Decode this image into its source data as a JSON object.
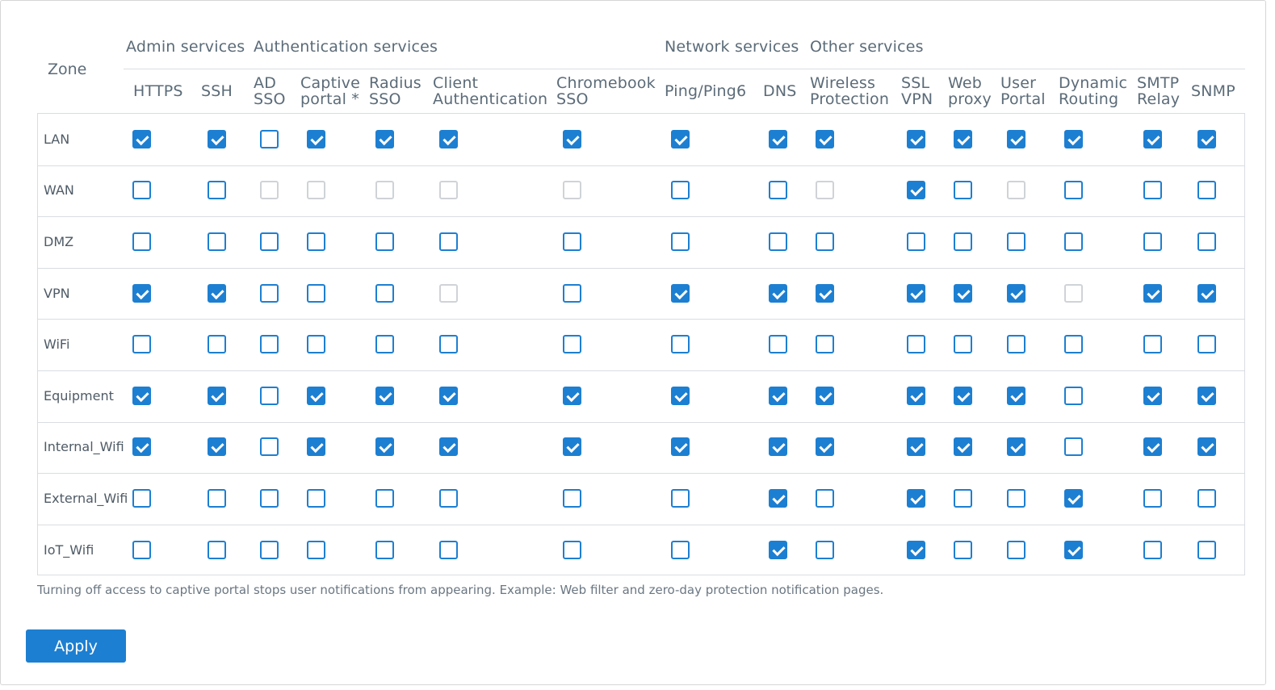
{
  "groups": [
    {
      "label": "Admin services"
    },
    {
      "label": "Authentication services"
    },
    {
      "label": "Network services"
    },
    {
      "label": "Other services"
    }
  ],
  "zone_header": "Zone",
  "columns": [
    {
      "l1": "HTTPS",
      "l2": ""
    },
    {
      "l1": "SSH",
      "l2": ""
    },
    {
      "l1": "AD",
      "l2": "SSO"
    },
    {
      "l1": "Captive",
      "l2": "portal *"
    },
    {
      "l1": "Radius",
      "l2": "SSO"
    },
    {
      "l1": "Client",
      "l2": "Authentication"
    },
    {
      "l1": "Chromebook",
      "l2": "SSO"
    },
    {
      "l1": "Ping/Ping6",
      "l2": ""
    },
    {
      "l1": "DNS",
      "l2": ""
    },
    {
      "l1": "Wireless",
      "l2": "Protection"
    },
    {
      "l1": "SSL",
      "l2": "VPN"
    },
    {
      "l1": "Web",
      "l2": "proxy"
    },
    {
      "l1": "User",
      "l2": "Portal"
    },
    {
      "l1": "Dynamic",
      "l2": "Routing"
    },
    {
      "l1": "SMTP",
      "l2": "Relay"
    },
    {
      "l1": "SNMP",
      "l2": ""
    }
  ],
  "rows": [
    {
      "zone": "LAN",
      "states": "1101111111111111"
    },
    {
      "zone": "WAN",
      "states": "00ddddd00d10d000"
    },
    {
      "zone": "DMZ",
      "states": "0000000000000000"
    },
    {
      "zone": "VPN",
      "states": "11000d0111111d11"
    },
    {
      "zone": "WiFi",
      "states": "0000000000000000"
    },
    {
      "zone": "Equipment",
      "states": "1101111111111011"
    },
    {
      "zone": "Internal_Wifi",
      "states": "1101111111111011"
    },
    {
      "zone": "External_Wifi",
      "states": "0000000010100100"
    },
    {
      "zone": "IoT_Wifi",
      "states": "0000000010100100"
    }
  ],
  "state_legend": {
    "1": "checked",
    "0": "unchecked",
    "d": "disabled"
  },
  "note": "Turning off access to captive portal stops user notifications from appearing. Example: Web filter and zero-day protection notification pages.",
  "apply_label": "Apply",
  "colors": {
    "accent": "#1d7fd1",
    "disabled_border": "#cfd3d7",
    "grid_line": "#d9dde1",
    "text": "#5b6b78"
  }
}
